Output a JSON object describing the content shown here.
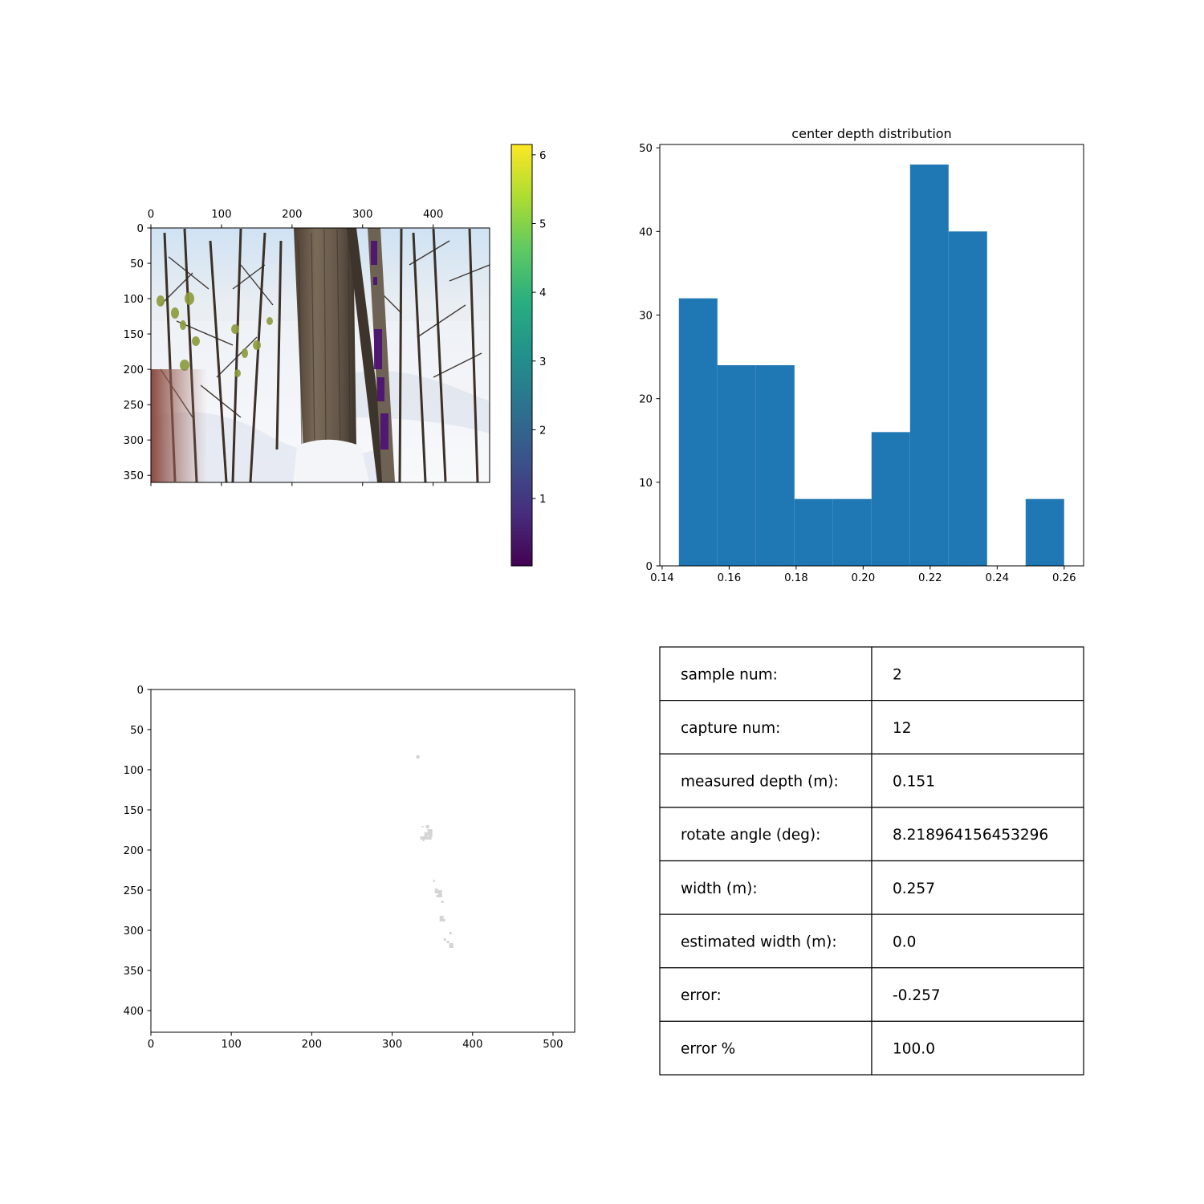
{
  "chart_data": [
    {
      "type": "image",
      "panel": "top-left",
      "content": "photo with depth overlay",
      "xticks": [
        0,
        100,
        200,
        300,
        400
      ],
      "yticks": [
        0,
        50,
        100,
        150,
        200,
        250,
        300,
        350
      ],
      "xlim": [
        0,
        480
      ],
      "ylim": [
        360,
        0
      ],
      "xaxis_position": "top",
      "colorbar": {
        "colormap": "viridis",
        "range": [
          0.02,
          6.15
        ],
        "ticks": [
          1,
          2,
          3,
          4,
          5,
          6
        ]
      }
    },
    {
      "type": "bar",
      "subtype": "histogram",
      "panel": "top-right",
      "title": "center depth distribution",
      "bin_edges": [
        0.145,
        0.1565,
        0.168,
        0.1795,
        0.191,
        0.2025,
        0.214,
        0.2255,
        0.237,
        0.2485,
        0.26
      ],
      "values": [
        32,
        24,
        24,
        8,
        8,
        16,
        48,
        40,
        0,
        8
      ],
      "color": "#1f77b4",
      "xlim": [
        0.1393,
        0.2658
      ],
      "ylim": [
        0,
        50.4
      ],
      "xticks": [
        "0.14",
        "0.16",
        "0.18",
        "0.20",
        "0.22",
        "0.24",
        "0.26"
      ],
      "xtick_values": [
        0.14,
        0.16,
        0.18,
        0.2,
        0.22,
        0.24,
        0.26
      ],
      "yticks": [
        0,
        10,
        20,
        30,
        40,
        50
      ],
      "grid": false
    },
    {
      "type": "image",
      "panel": "bottom-left",
      "content": "sparse grey mask points",
      "xlim": [
        0,
        527
      ],
      "ylim": [
        427,
        0
      ],
      "xticks": [
        0,
        100,
        200,
        300,
        400,
        500
      ],
      "yticks": [
        0,
        50,
        100,
        150,
        200,
        250,
        300,
        350,
        400
      ],
      "point_color": "#d4d4d4",
      "points": [
        {
          "x": 330,
          "y": 82,
          "w": 4,
          "h": 4
        },
        {
          "x": 337,
          "y": 170,
          "w": 2,
          "h": 2
        },
        {
          "x": 342,
          "y": 169,
          "w": 4,
          "h": 4
        },
        {
          "x": 344,
          "y": 174,
          "w": 6,
          "h": 8
        },
        {
          "x": 340,
          "y": 178,
          "w": 4,
          "h": 5
        },
        {
          "x": 346,
          "y": 180,
          "w": 4,
          "h": 4
        },
        {
          "x": 335,
          "y": 183,
          "w": 14,
          "h": 4
        },
        {
          "x": 338,
          "y": 186,
          "w": 2,
          "h": 3
        },
        {
          "x": 351,
          "y": 237,
          "w": 2,
          "h": 3
        },
        {
          "x": 353,
          "y": 248,
          "w": 4,
          "h": 6
        },
        {
          "x": 357,
          "y": 250,
          "w": 5,
          "h": 9
        },
        {
          "x": 355,
          "y": 256,
          "w": 3,
          "h": 3
        },
        {
          "x": 361,
          "y": 263,
          "w": 3,
          "h": 3
        },
        {
          "x": 359,
          "y": 282,
          "w": 5,
          "h": 7
        },
        {
          "x": 363,
          "y": 286,
          "w": 3,
          "h": 3
        },
        {
          "x": 371,
          "y": 302,
          "w": 3,
          "h": 3
        },
        {
          "x": 364,
          "y": 310,
          "w": 3,
          "h": 3
        },
        {
          "x": 368,
          "y": 313,
          "w": 3,
          "h": 3
        },
        {
          "x": 371,
          "y": 316,
          "w": 5,
          "h": 6
        }
      ]
    },
    {
      "type": "table",
      "panel": "bottom-right",
      "rows": [
        [
          "sample num:",
          "2"
        ],
        [
          "capture num:",
          "12"
        ],
        [
          "measured depth (m):",
          "0.151"
        ],
        [
          "rotate angle (deg):",
          "8.218964156453296"
        ],
        [
          "width (m):",
          "0.257"
        ],
        [
          "estimated width (m):",
          "0.0"
        ],
        [
          "error:",
          "-0.257"
        ],
        [
          "error %",
          "100.0"
        ]
      ]
    }
  ]
}
